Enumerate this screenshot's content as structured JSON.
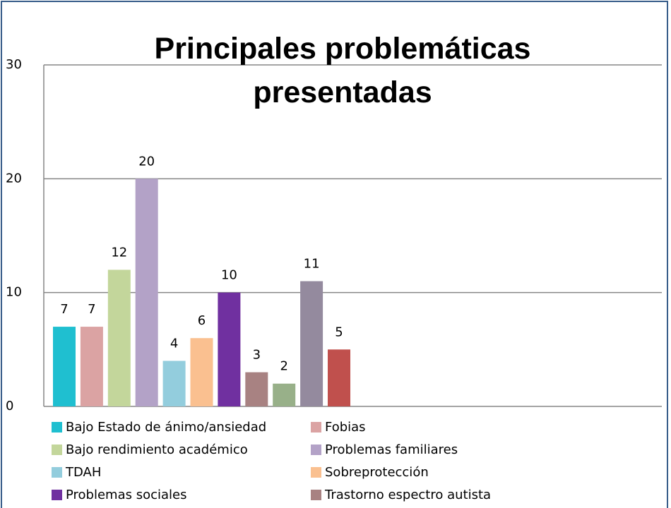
{
  "chart_data": {
    "type": "bar",
    "title": "Principales problemáticas presentadas",
    "categories": [
      "Bajo Estado de ánimo/ansiedad",
      "Fobias",
      "Bajo rendimiento académico",
      "Problemas familiares",
      "TDAH",
      "Sobreprotección",
      "Problemas sociales",
      "Trastorno espectro autista",
      null,
      null,
      null
    ],
    "values": [
      7,
      7,
      12,
      20,
      4,
      6,
      10,
      3,
      2,
      11,
      5
    ],
    "colors": [
      "#1fbfd0",
      "#dba3a3",
      "#c3d69b",
      "#b3a2c7",
      "#93cddd",
      "#fac090",
      "#7030a0",
      "#a88282",
      "#98b089",
      "#948a9e",
      "#c0504d"
    ],
    "ylim": [
      0,
      30
    ],
    "yticks": [
      0,
      10,
      20,
      30
    ],
    "grid": true
  }
}
